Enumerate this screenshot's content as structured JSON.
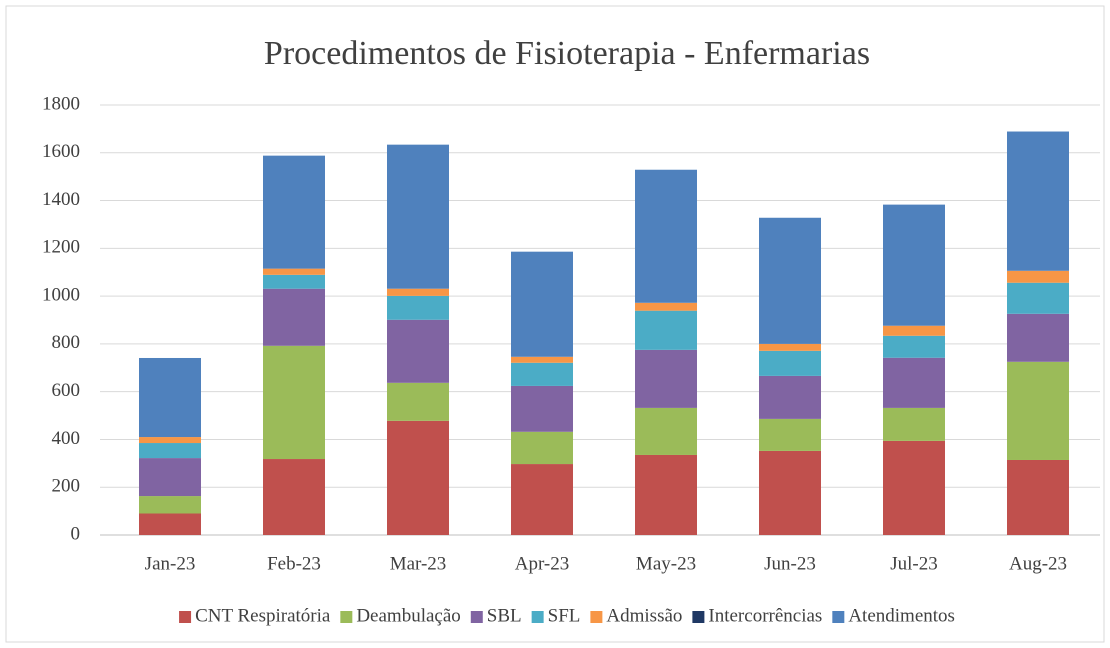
{
  "chart_data": {
    "type": "stacked_bar",
    "title": "Procedimentos de Fisioterapia - Enfermarias",
    "categories": [
      "Jan-23",
      "Feb-23",
      "Mar-23",
      "Apr-23",
      "May-23",
      "Jun-23",
      "Jul-23",
      "Aug-23"
    ],
    "series": [
      {
        "name": "CNT Respiratória",
        "color": "#c0504d",
        "values": [
          90,
          318,
          478,
          297,
          335,
          352,
          394,
          314
        ]
      },
      {
        "name": "Deambulação",
        "color": "#9bbb59",
        "values": [
          73,
          474,
          159,
          135,
          197,
          134,
          138,
          411
        ]
      },
      {
        "name": "SBL",
        "color": "#8064a2",
        "values": [
          159,
          239,
          264,
          192,
          243,
          180,
          210,
          201
        ]
      },
      {
        "name": "SFL",
        "color": "#4bacc6",
        "values": [
          63,
          58,
          100,
          97,
          164,
          105,
          92,
          130
        ]
      },
      {
        "name": "Admissão",
        "color": "#f79646",
        "values": [
          25,
          26,
          30,
          25,
          33,
          29,
          42,
          50
        ]
      },
      {
        "name": "Intercorrências",
        "color": "#1f3864",
        "values": [
          0,
          0,
          0,
          0,
          0,
          0,
          0,
          0
        ]
      },
      {
        "name": "Atendimentos",
        "color": "#4f81bd",
        "values": [
          331,
          473,
          603,
          440,
          557,
          528,
          507,
          583
        ]
      }
    ],
    "ylim": [
      0,
      1800
    ],
    "yticks": [
      0,
      200,
      400,
      600,
      800,
      1000,
      1200,
      1400,
      1600,
      1800
    ],
    "grid": true,
    "legend": "bottom"
  }
}
